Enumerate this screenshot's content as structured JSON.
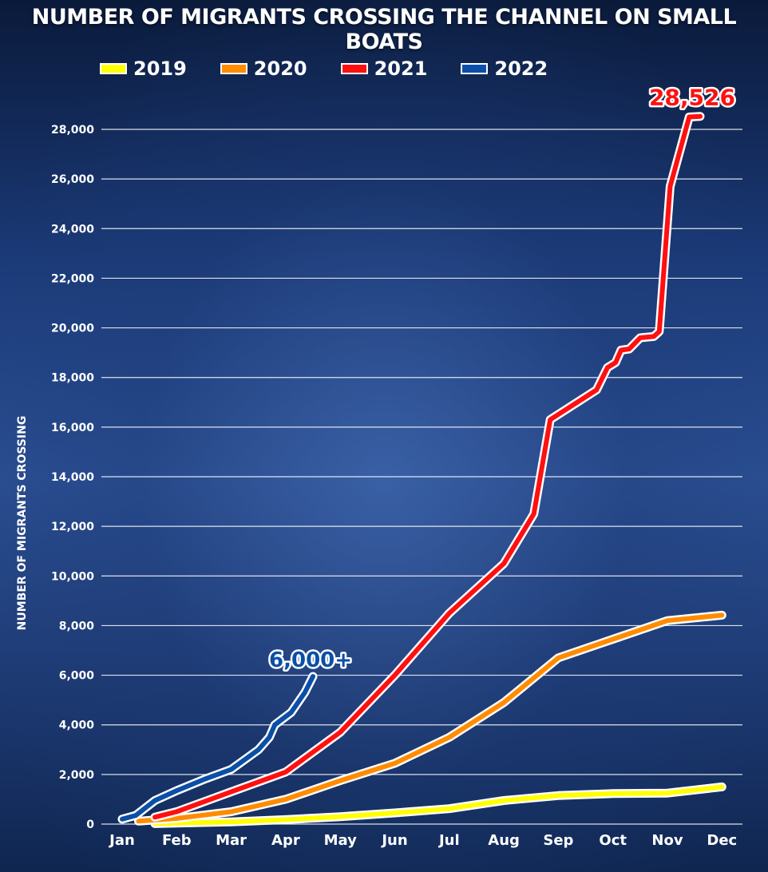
{
  "title": "NUMBER OF MIGRANTS CROSSING THE CHANNEL ON SMALL BOATS",
  "chart_data": {
    "type": "line",
    "title": "NUMBER OF MIGRANTS CROSSING THE CHANNEL ON SMALL BOATS",
    "xlabel": "",
    "ylabel": "NUMBER OF MIGRANTS CROSSING",
    "x_ticks": [
      "Jan",
      "Feb",
      "Mar",
      "Apr",
      "May",
      "Jun",
      "Jul",
      "Aug",
      "Sep",
      "Oct",
      "Nov",
      "Dec"
    ],
    "y_ticks": [
      0,
      2000,
      4000,
      6000,
      8000,
      10000,
      12000,
      14000,
      16000,
      18000,
      20000,
      22000,
      24000,
      26000,
      28000
    ],
    "y_tick_labels": [
      "0",
      "2,000",
      "4,000",
      "6,000",
      "8,000",
      "10,000",
      "12,000",
      "14,000",
      "16,000",
      "18,000",
      "20,000",
      "22,000",
      "24,000",
      "26,000",
      "28,000"
    ],
    "xlim": [
      0,
      11
    ],
    "ylim": [
      0,
      29500
    ],
    "grid": true,
    "legend_position": "top",
    "series": [
      {
        "name": "2019",
        "color": "#ffff00",
        "points": [
          [
            0.6,
            20
          ],
          [
            1,
            40
          ],
          [
            2,
            90
          ],
          [
            3,
            180
          ],
          [
            4,
            300
          ],
          [
            5,
            450
          ],
          [
            6,
            620
          ],
          [
            7,
            950
          ],
          [
            8,
            1150
          ],
          [
            9,
            1230
          ],
          [
            10,
            1250
          ],
          [
            11,
            1500
          ]
        ]
      },
      {
        "name": "2020",
        "color": "#ff8c00",
        "points": [
          [
            0.3,
            120
          ],
          [
            1,
            230
          ],
          [
            2,
            500
          ],
          [
            3,
            1000
          ],
          [
            4,
            1750
          ],
          [
            5,
            2450
          ],
          [
            6,
            3500
          ],
          [
            7,
            4900
          ],
          [
            8,
            6700
          ],
          [
            9,
            7450
          ],
          [
            10,
            8200
          ],
          [
            11,
            8420
          ]
        ]
      },
      {
        "name": "2021",
        "color": "#ff1010",
        "points": [
          [
            0.6,
            280
          ],
          [
            1,
            500
          ],
          [
            2,
            1300
          ],
          [
            3,
            2100
          ],
          [
            4,
            3700
          ],
          [
            5,
            6000
          ],
          [
            6,
            8500
          ],
          [
            7,
            10500
          ],
          [
            7.55,
            12500
          ],
          [
            7.85,
            16300
          ],
          [
            8.7,
            17500
          ],
          [
            8.9,
            18400
          ],
          [
            9.05,
            18600
          ],
          [
            9.15,
            19100
          ],
          [
            9.3,
            19150
          ],
          [
            9.5,
            19600
          ],
          [
            9.75,
            19650
          ],
          [
            9.85,
            19850
          ],
          [
            10.05,
            25700
          ],
          [
            10.4,
            28500
          ],
          [
            10.6,
            28526
          ]
        ]
      },
      {
        "name": "2022",
        "color": "#0a4fa8",
        "points": [
          [
            0,
            200
          ],
          [
            0.25,
            350
          ],
          [
            0.6,
            950
          ],
          [
            1,
            1350
          ],
          [
            1.5,
            1800
          ],
          [
            2,
            2200
          ],
          [
            2.5,
            3000
          ],
          [
            2.7,
            3500
          ],
          [
            2.8,
            4000
          ],
          [
            3.1,
            4500
          ],
          [
            3.35,
            5300
          ],
          [
            3.5,
            5950
          ]
        ]
      }
    ],
    "annotations": [
      {
        "text": "28,526",
        "series": "2021",
        "color": "#ff1010"
      },
      {
        "text": "6,000+",
        "series": "2022",
        "color": "#0a4fa8"
      }
    ]
  }
}
